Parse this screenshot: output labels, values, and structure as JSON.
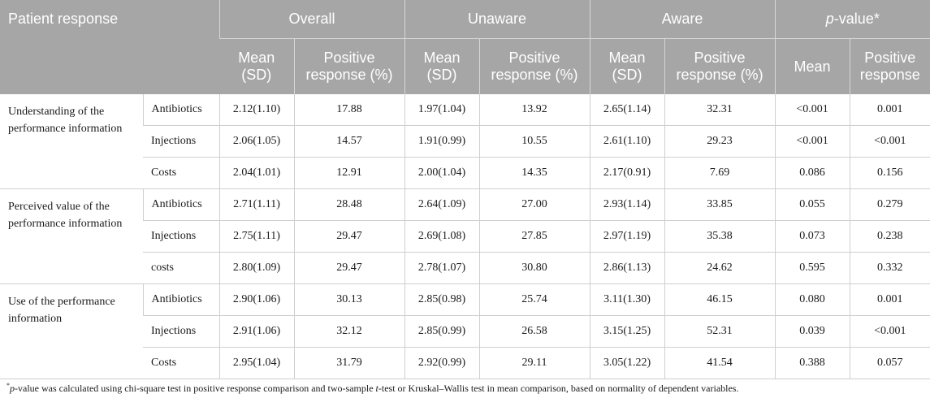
{
  "header": {
    "title": "Patient response",
    "groups": [
      "Overall",
      "Unaware",
      "Aware"
    ],
    "pvalue_italic": "p",
    "pvalue_rest": "-value*",
    "sub": {
      "mean_1": "Mean",
      "mean_2": "(SD)",
      "pos_1": "Positive",
      "pos_2": "response (%)",
      "pv_mean": "Mean",
      "pv_pos_1": "Positive",
      "pv_pos_2": "response"
    }
  },
  "sections": [
    {
      "label": "Understanding of the performance information",
      "rows": [
        {
          "item": "Antibiotics",
          "values": [
            "2.12(1.10)",
            "17.88",
            "1.97(1.04)",
            "13.92",
            "2.65(1.14)",
            "32.31",
            "<0.001",
            "0.001"
          ]
        },
        {
          "item": "Injections",
          "values": [
            "2.06(1.05)",
            "14.57",
            "1.91(0.99)",
            "10.55",
            "2.61(1.10)",
            "29.23",
            "<0.001",
            "<0.001"
          ]
        },
        {
          "item": "Costs",
          "values": [
            "2.04(1.01)",
            "12.91",
            "2.00(1.04)",
            "14.35",
            "2.17(0.91)",
            "7.69",
            "0.086",
            "0.156"
          ]
        }
      ]
    },
    {
      "label": "Perceived value of the performance information",
      "rows": [
        {
          "item": "Antibiotics",
          "values": [
            "2.71(1.11)",
            "28.48",
            "2.64(1.09)",
            "27.00",
            "2.93(1.14)",
            "33.85",
            "0.055",
            "0.279"
          ]
        },
        {
          "item": "Injections",
          "values": [
            "2.75(1.11)",
            "29.47",
            "2.69(1.08)",
            "27.85",
            "2.97(1.19)",
            "35.38",
            "0.073",
            "0.238"
          ]
        },
        {
          "item": "costs",
          "values": [
            "2.80(1.09)",
            "29.47",
            "2.78(1.07)",
            "30.80",
            "2.86(1.13)",
            "24.62",
            "0.595",
            "0.332"
          ]
        }
      ]
    },
    {
      "label": "Use of the performance information",
      "rows": [
        {
          "item": "Antibiotics",
          "values": [
            "2.90(1.06)",
            "30.13",
            "2.85(0.98)",
            "25.74",
            "3.11(1.30)",
            "46.15",
            "0.080",
            "0.001"
          ]
        },
        {
          "item": "Injections",
          "values": [
            "2.91(1.06)",
            "32.12",
            "2.85(0.99)",
            "26.58",
            "3.15(1.25)",
            "52.31",
            "0.039",
            "<0.001"
          ]
        },
        {
          "item": "Costs",
          "values": [
            "2.95(1.04)",
            "31.79",
            "2.92(0.99)",
            "29.11",
            "3.05(1.22)",
            "41.54",
            "0.388",
            "0.057"
          ]
        }
      ]
    }
  ],
  "footnote": {
    "mark": "*",
    "p": "p",
    "part1": "-value was calculated using chi-square test in positive response comparison and two-sample ",
    "t": "t",
    "part2": "-test or Kruskal–Wallis test in mean comparison, based on normality of dependent variables."
  }
}
